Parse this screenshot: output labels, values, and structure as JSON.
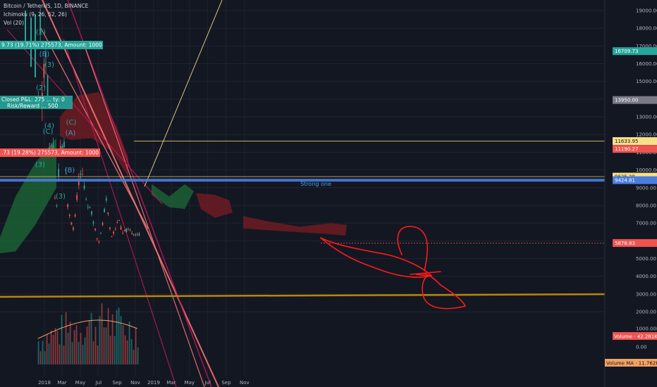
{
  "header": {
    "symbol_line": "Bitcoin / TetherUS, 1D, BINANCE",
    "ichimoku_line": "Ichimoku (9, 26, 52, 26)",
    "vol_line": "Vol (20)"
  },
  "chart_data": {
    "type": "candlestick",
    "x_labels": [
      "2018",
      "Mar",
      "May",
      "Jul",
      "Sep",
      "Nov",
      "2019",
      "Mar",
      "May",
      "Jul",
      "Sep",
      "Nov"
    ],
    "y_ticks": [
      19000,
      18000,
      17000,
      16000,
      15000,
      14000,
      13000,
      12000,
      11000,
      10000,
      9000,
      8000,
      7000,
      6000,
      5000,
      4000,
      3000,
      2000
    ],
    "y_tick_labels": [
      "19000.00",
      "18000.00",
      "17000.00",
      "16000.00",
      "15000.00",
      "14000.00",
      "13000.00",
      "12000.00",
      "11000.00",
      "10000.00",
      "9000.00",
      "8000.00",
      "7000.00",
      "6000.00",
      "5000.00",
      "4000.00",
      "3000.00",
      "2000.00"
    ],
    "volume_axis_labels": [
      "1000.00K",
      "0.00"
    ],
    "ylim": [
      2000,
      19500
    ],
    "price_series": [
      [
        "2017-12-10",
        13500
      ],
      [
        "2017-12-17",
        19000
      ],
      [
        "2017-12-22",
        13800
      ],
      [
        "2018-01-06",
        17000
      ],
      [
        "2018-01-17",
        10500
      ],
      [
        "2018-01-28",
        11500
      ],
      [
        "2018-02-06",
        6900
      ],
      [
        "2018-02-20",
        11200
      ],
      [
        "2018-03-05",
        11500
      ],
      [
        "2018-03-18",
        8000
      ],
      [
        "2018-04-01",
        6900
      ],
      [
        "2018-04-06",
        6600
      ],
      [
        "2018-04-25",
        9600
      ],
      [
        "2018-05-05",
        9800
      ],
      [
        "2018-05-20",
        8200
      ],
      [
        "2018-06-05",
        7600
      ],
      [
        "2018-06-28",
        5900
      ],
      [
        "2018-07-10",
        6600
      ],
      [
        "2018-07-24",
        8400
      ],
      [
        "2018-08-10",
        6200
      ],
      [
        "2018-08-25",
        6700
      ],
      [
        "2018-09-05",
        7300
      ],
      [
        "2018-09-15",
        6400
      ],
      [
        "2018-10-01",
        6600
      ],
      [
        "2018-10-15",
        6500
      ],
      [
        "2018-10-28",
        6400
      ],
      [
        "2018-11-08",
        6400
      ],
      [
        "2018-11-13",
        6300
      ]
    ],
    "horizontal_levels": [
      {
        "label": "Strong one",
        "price": 9424.81,
        "price_label": "9424.81",
        "color": "#4a7ede"
      },
      {
        "price": 11633.95,
        "price_label": "11633.95",
        "color": "#e9c46a"
      },
      {
        "price": 9625.29,
        "price_label": "9625.29",
        "color": "#e9c46a"
      },
      {
        "price": 5878.83,
        "price_label": "5878.83",
        "color": "#ef5350"
      },
      {
        "price": 3000,
        "color": "#b8860b"
      }
    ],
    "price_tags": [
      {
        "text": "16709.73",
        "price": 16709.73,
        "bg": "#26a69a",
        "fg": "#ffffff"
      },
      {
        "text": "13950.00",
        "price": 13950,
        "bg": "#787b86",
        "fg": "#ffffff"
      },
      {
        "text": "11633.95",
        "price": 11633.95,
        "bg": "#f7e08a",
        "fg": "#131722"
      },
      {
        "text": "11190.27",
        "price": 11190.27,
        "bg": "#ef5350",
        "fg": "#ffffff"
      },
      {
        "text": "9625.29",
        "price": 9625.29,
        "bg": "#f7e08a",
        "fg": "#131722"
      },
      {
        "text": "9424.81",
        "price": 9424.81,
        "bg": "#4a7ede",
        "fg": "#ffffff"
      },
      {
        "text": "5878.83",
        "price": 5878.83,
        "bg": "#ef5350",
        "fg": "#ffffff"
      }
    ],
    "volume_tags": [
      {
        "text": "Volume · 42.281K",
        "bg": "#ef5350",
        "fg": "#ffffff"
      },
      {
        "text": "Volume MA · 11.762K",
        "bg": "#f4a261",
        "fg": "#131722"
      }
    ],
    "trade_boxes": [
      {
        "text": "9.73 (19.71%) 275573, Amount: 1000",
        "color": "#26a69a"
      },
      {
        "line1": "Closed P&L: 275 ... ty: 0",
        "line2": "Risk/Reward ... 500",
        "color": "#26a69a"
      },
      {
        "text": ".73 (19.28%) 275573, Amount: 1000",
        "color": "#ef5350"
      }
    ],
    "wave_labels": [
      "(2)",
      "(B)",
      "(3)",
      "(2)",
      "(C)",
      "(4)",
      "(C)",
      "(A)",
      "(3)",
      "(B)",
      "(3)"
    ],
    "colors": {
      "background": "#131722",
      "up": "#26a69a",
      "down": "#ef5350",
      "cloud_bull": "#1e6b37",
      "cloud_bear": "#7a1c23",
      "drawing": "#ff1a1a",
      "trend_pink": "#ff7a7a",
      "trend_magenta": "#c2185b",
      "trend_yellow": "#f7e08a",
      "volume_ma": "#f4a261"
    }
  }
}
